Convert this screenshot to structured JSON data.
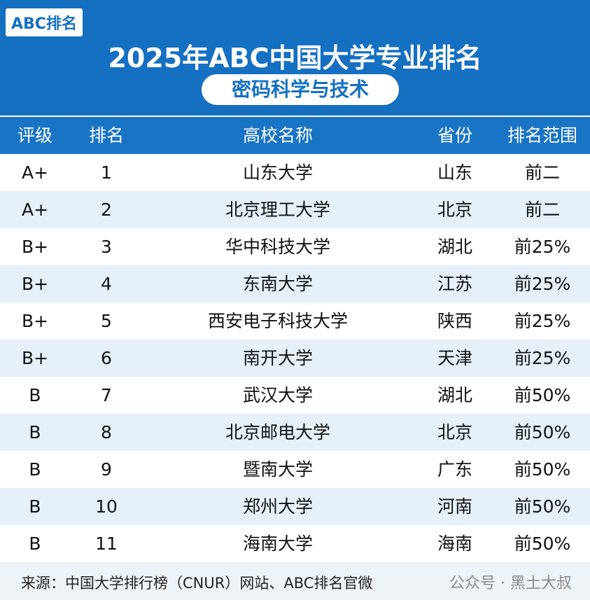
{
  "header": {
    "badge": "ABC排名",
    "title": "2025年ABC中国大学专业排名",
    "subtitle": "密码科学与技术"
  },
  "table": {
    "columns": [
      "评级",
      "排名",
      "高校名称",
      "省份",
      "排名范围"
    ],
    "rows": [
      [
        "A+",
        1,
        "山东大学",
        "山东",
        "前二"
      ],
      [
        "A+",
        2,
        "北京理工大学",
        "北京",
        "前二"
      ],
      [
        "B+",
        3,
        "华中科技大学",
        "湖北",
        "前25%"
      ],
      [
        "B+",
        4,
        "东南大学",
        "江苏",
        "前25%"
      ],
      [
        "B+",
        5,
        "西安电子科技大学",
        "陕西",
        "前25%"
      ],
      [
        "B+",
        6,
        "南开大学",
        "天津",
        "前25%"
      ],
      [
        "B",
        7,
        "武汉大学",
        "湖北",
        "前50%"
      ],
      [
        "B",
        8,
        "北京邮电大学",
        "北京",
        "前50%"
      ],
      [
        "B",
        9,
        "暨南大学",
        "广东",
        "前50%"
      ],
      [
        "B",
        10,
        "郑州大学",
        "河南",
        "前50%"
      ],
      [
        "B",
        11,
        "海南大学",
        "海南",
        "前50%"
      ]
    ]
  },
  "footer": {
    "source": "来源：中国大学排行榜（CNUR）网站、ABC排名官微",
    "watermark": "公众号 · 黑土大叔"
  }
}
